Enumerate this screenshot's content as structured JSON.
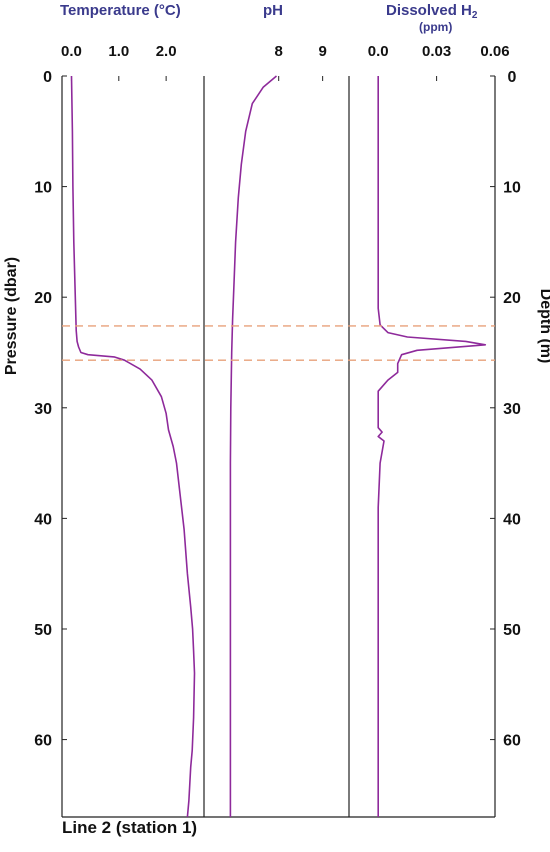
{
  "header": {
    "temperature_title": "Temperature (°C)",
    "ph_title": "pH",
    "h2_title": "Dissolved H",
    "h2_sub": "2",
    "h2_unit": "(ppm)"
  },
  "caption": "Line 2 (station 1)",
  "chart_data": {
    "type": "line",
    "left_ylabel": "Pressure (dbar)",
    "right_ylabel": "Depth (m)",
    "ylim": [
      0,
      67
    ],
    "y_inverted": true,
    "y_ticks": [
      0,
      10,
      20,
      30,
      40,
      50,
      60
    ],
    "reference_lines_depth_m": [
      22.6,
      25.7
    ],
    "reference_line_color": "#e8a07a",
    "line_color": "#8e2a9b",
    "panels": [
      {
        "name": "temperature",
        "x_ticks": [
          "0.0",
          "1.0",
          "2.0"
        ],
        "x_tick_values": [
          0.0,
          1.0,
          2.0
        ],
        "xlim": [
          -0.2,
          2.8
        ],
        "series": [
          {
            "x": [
              0.0,
              0.02,
              0.03,
              0.05,
              0.08,
              0.1,
              0.12,
              0.15,
              0.2,
              0.35,
              0.9,
              1.12,
              1.45,
              1.7,
              1.9,
              2.0,
              2.05,
              2.15,
              2.22,
              2.3,
              2.38,
              2.45,
              2.52,
              2.56,
              2.58,
              2.6,
              2.58,
              2.55,
              2.52,
              2.5,
              2.48,
              2.45
            ],
            "y": [
              0,
              5,
              10,
              15,
              20,
              23,
              24,
              24.5,
              25,
              25.2,
              25.4,
              25.7,
              26.5,
              27.5,
              29,
              30.5,
              32,
              33.5,
              35,
              38,
              41,
              45,
              48,
              50,
              52,
              54,
              58,
              61,
              62.5,
              64,
              65.5,
              67
            ]
          }
        ]
      },
      {
        "name": "pH",
        "x_ticks": [
          "8",
          "9"
        ],
        "x_tick_values": [
          8,
          9
        ],
        "xlim": [
          6.3,
          9.6
        ],
        "series": [
          {
            "x": [
              7.95,
              7.65,
              7.4,
              7.25,
              7.15,
              7.08,
              7.02,
              6.98,
              6.95,
              6.93,
              6.91,
              6.9,
              6.9,
              6.9,
              6.9,
              6.9,
              6.9
            ],
            "y": [
              0,
              1,
              2.5,
              5,
              8,
              11,
              15,
              19,
              22,
              25,
              30,
              35,
              40,
              50,
              60,
              64,
              67
            ]
          }
        ]
      },
      {
        "name": "dissolved_h2",
        "x_ticks": [
          "0.0",
          "0.03",
          "0.06"
        ],
        "x_tick_values": [
          0.0,
          0.03,
          0.06
        ],
        "xlim": [
          -0.015,
          0.06
        ],
        "series": [
          {
            "x": [
              0.0,
              0.0,
              0.0,
              0.0,
              0.0,
              0.0,
              0.0,
              0.0,
              0.001,
              0.005,
              0.015,
              0.045,
              0.055,
              0.02,
              0.012,
              0.01,
              0.01,
              0.005,
              0.0,
              0.0,
              0.0,
              0.0,
              0.0,
              0.002,
              0.0,
              0.003,
              0.001,
              0.0,
              0.0,
              0.0,
              0.0,
              0.0,
              0.0,
              0.0
            ],
            "y": [
              0,
              2,
              5,
              8,
              12,
              16,
              19,
              21,
              22.5,
              23.2,
              23.6,
              24.0,
              24.3,
              24.8,
              25.2,
              26,
              26.8,
              27.5,
              28.5,
              30,
              31,
              31.6,
              31.8,
              32.2,
              32.6,
              33,
              35,
              39,
              42,
              46,
              50,
              55,
              60,
              67
            ]
          }
        ]
      }
    ]
  }
}
